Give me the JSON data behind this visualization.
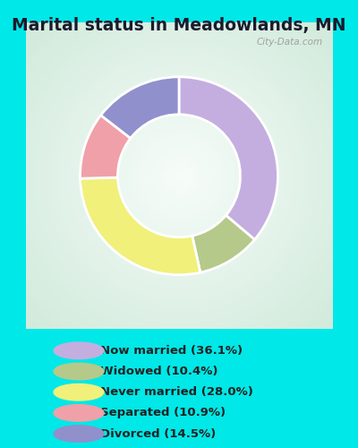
{
  "title": "Marital status in Meadowlands, MN",
  "categories": [
    "Now married",
    "Widowed",
    "Never married",
    "Separated",
    "Divorced"
  ],
  "values": [
    36.1,
    10.4,
    28.0,
    10.9,
    14.5
  ],
  "colors": [
    "#c4aee0",
    "#b5c98a",
    "#f0f07a",
    "#f0a0a8",
    "#9090cc"
  ],
  "legend_labels": [
    "Now married (36.1%)",
    "Widowed (10.4%)",
    "Never married (28.0%)",
    "Separated (10.9%)",
    "Divorced (14.5%)"
  ],
  "bg_outer": "#00e8e8",
  "bg_chart_color1": "#cce8d8",
  "bg_chart_color2": "#e8f4ec",
  "title_fontsize": 13.5,
  "watermark": "City-Data.com",
  "donut_width": 0.38,
  "start_angle": 90
}
